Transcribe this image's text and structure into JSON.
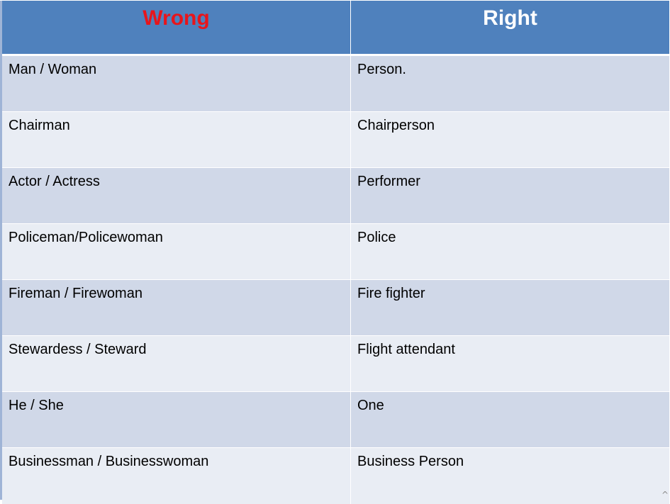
{
  "header": {
    "wrong_label": "Wrong",
    "right_label": "Right"
  },
  "rows": [
    {
      "wrong": "Man / Woman",
      "right": "Person."
    },
    {
      "wrong": "Chairman",
      "right": "Chairperson"
    },
    {
      "wrong": "Actor / Actress",
      "right": "Performer"
    },
    {
      "wrong": "Policeman/Policewoman",
      "right": "Police"
    },
    {
      "wrong": "Fireman / Firewoman",
      "right": "Fire fighter"
    },
    {
      "wrong": "Stewardess / Steward",
      "right": "Flight attendant"
    },
    {
      "wrong": "He / She",
      "right": "One"
    },
    {
      "wrong": "Businessman / Businesswoman",
      "right": "Business Person"
    }
  ],
  "colors": {
    "header_bg": "#4f81bd",
    "wrong_header_text": "#e8151b",
    "right_header_text": "#ffffff",
    "row_dark": "#d0d8e8",
    "row_light": "#e9edf4"
  },
  "icons": {
    "corner": "caret-up-icon"
  }
}
